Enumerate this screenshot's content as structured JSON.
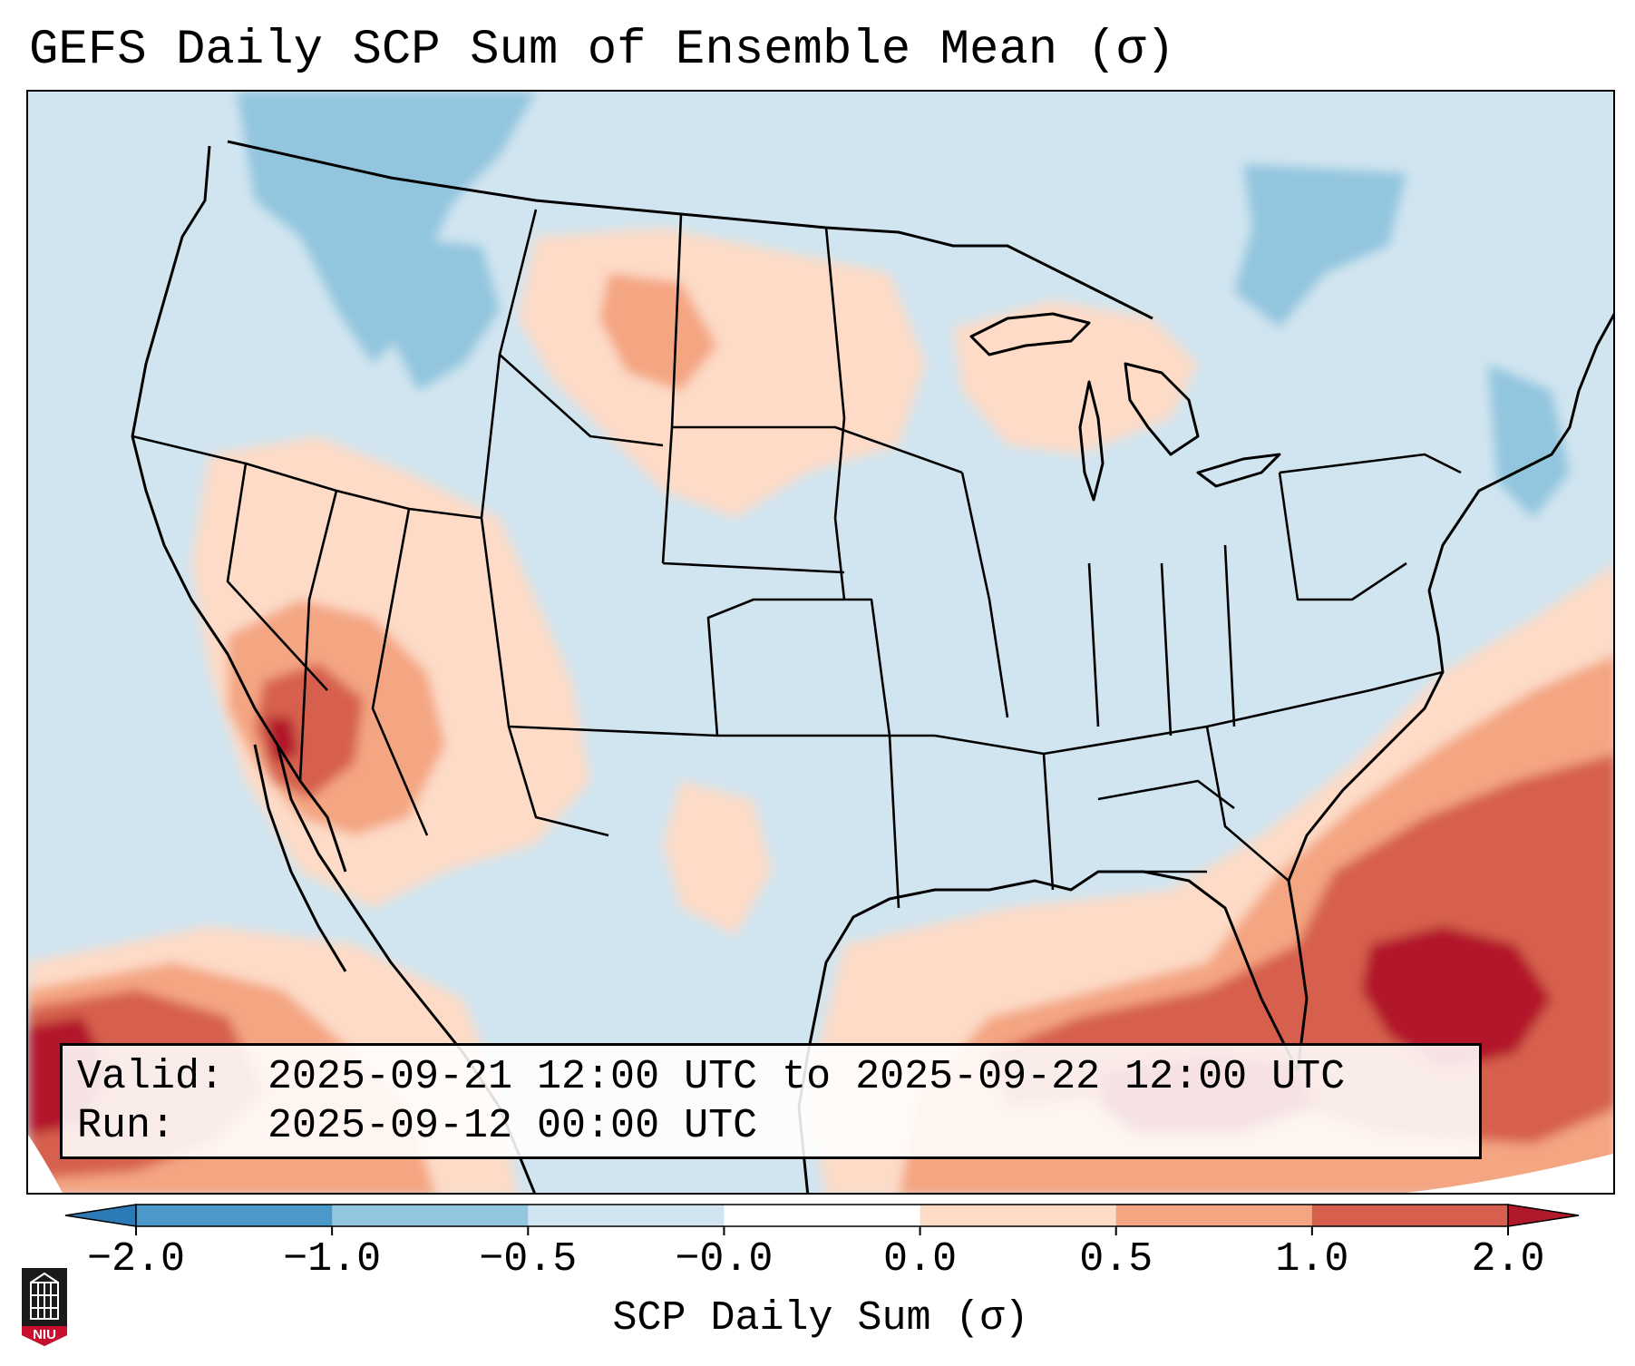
{
  "title": "GEFS Daily SCP Sum of Ensemble Mean (σ)",
  "info": {
    "valid_label": "Valid:",
    "valid_value": "2025-09-21 12:00 UTC to 2025-09-22 12:00 UTC",
    "run_label": "Run:",
    "run_value": "2025-09-12 00:00 UTC"
  },
  "colorbar": {
    "label": "SCP Daily Sum (σ)",
    "ticks": [
      "−2.0",
      "−1.0",
      "−0.5",
      "−0.0",
      "0.0",
      "0.5",
      "1.0",
      "2.0"
    ],
    "colors": [
      "#2c7bb6",
      "#4b98cb",
      "#92c5de",
      "#d1e5f0",
      "#ffffff",
      "#fddbc7",
      "#f4a582",
      "#d6604d",
      "#b2182b"
    ],
    "under_color": "#2c7bb6",
    "over_color": "#b2182b"
  },
  "map": {
    "projection": "Lambert Conformal",
    "region": "Continental United States",
    "background_color": "#d1e5f0",
    "field_colors": {
      "slightly_negative": "#d1e5f0",
      "negative": "#92c5de",
      "slightly_positive": "#fddbc7",
      "positive": "#f4a582",
      "high": "#d6604d",
      "very_high": "#b2182b"
    }
  },
  "logo": {
    "text": "NIU"
  }
}
